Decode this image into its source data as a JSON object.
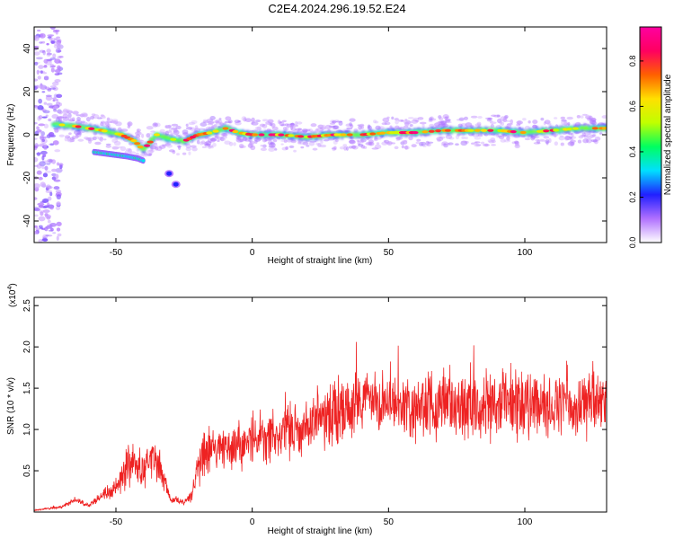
{
  "title": "C2E4.2024.296.19.52.E24",
  "chart_data": [
    {
      "type": "heatmap",
      "xlabel": "Height of straight line (km)",
      "ylabel": "Frequency (Hz)",
      "xlim": [
        -80,
        130
      ],
      "ylim": [
        -50,
        50
      ],
      "xticks": [
        -50,
        0,
        50,
        100
      ],
      "yticks": [
        40,
        20,
        0,
        -20,
        -40
      ],
      "grid": false,
      "colorbar": {
        "label": "Normalized spectral amplitude",
        "range": [
          0,
          0.95
        ],
        "ticks": [
          "0.0",
          "0.2",
          "0.4",
          "0.6",
          "0.8"
        ],
        "tick_values": [
          0.0,
          0.2,
          0.4,
          0.6,
          0.8
        ],
        "colors": [
          "#ffffff",
          "#b070ff",
          "#2020ff",
          "#00e0ff",
          "#00ff60",
          "#c0ff00",
          "#ffe000",
          "#ff6000",
          "#ff0060",
          "#ff00a0"
        ]
      },
      "ridge": {
        "x": [
          -73,
          -65,
          -55,
          -48,
          -43,
          -40,
          -35,
          -30,
          -25,
          -20,
          -15,
          -10,
          -5,
          0,
          10,
          20,
          30,
          40,
          50,
          60,
          70,
          80,
          90,
          100,
          110,
          120,
          130
        ],
        "y": [
          5,
          4,
          2,
          0,
          -3,
          -7,
          0,
          -2,
          -3,
          0,
          1,
          3,
          1,
          0,
          0,
          -1,
          0,
          0,
          1,
          1,
          2,
          2,
          2,
          1,
          2,
          3,
          3
        ]
      },
      "secondary_branch": {
        "x": [
          -58,
          -52,
          -46,
          -42,
          -40
        ],
        "y": [
          -8,
          -9,
          -10,
          -11,
          -12
        ]
      },
      "isolated_blobs": [
        {
          "x": -30.5,
          "y": -18
        },
        {
          "x": -28,
          "y": -23
        }
      ]
    },
    {
      "type": "line",
      "xlabel": "Height of straight line (km)",
      "ylabel": "SNR (10 * v/v)",
      "y_multiplier": "(x10",
      "y_multiplier_exp": "4",
      "y_multiplier_close": ")",
      "xlim": [
        -80,
        130
      ],
      "ylim": [
        0,
        2.6
      ],
      "xticks": [
        -50,
        0,
        50,
        100
      ],
      "yticks": [
        "0.5",
        "1.0",
        "1.5",
        "2.0",
        "2.5"
      ],
      "ytick_values": [
        0.5,
        1.0,
        1.5,
        2.0,
        2.5
      ],
      "line_color": "#ee2222",
      "grid": false,
      "series": [
        {
          "x": [
            -80,
            -70,
            -65,
            -60,
            -55,
            -50,
            -46,
            -43,
            -40,
            -37,
            -34,
            -30,
            -28,
            -25,
            -22,
            -20,
            -18,
            -15,
            -10,
            -5,
            0,
            5,
            10,
            15,
            20,
            25,
            30,
            35,
            40,
            45,
            50,
            55,
            60,
            65,
            70,
            75,
            80,
            85,
            90,
            95,
            100,
            105,
            110,
            115,
            120,
            125,
            130
          ],
          "y": [
            0.02,
            0.06,
            0.15,
            0.08,
            0.2,
            0.3,
            0.55,
            0.6,
            0.5,
            0.65,
            0.55,
            0.15,
            0.15,
            0.12,
            0.2,
            0.55,
            0.7,
            0.75,
            0.75,
            0.8,
            0.85,
            0.9,
            0.95,
            1.0,
            1.05,
            1.1,
            1.2,
            1.25,
            1.3,
            1.3,
            1.3,
            1.28,
            1.3,
            1.32,
            1.35,
            1.3,
            1.3,
            1.28,
            1.3,
            1.32,
            1.3,
            1.25,
            1.28,
            1.3,
            1.25,
            1.3,
            1.28
          ],
          "amplitude": [
            0.01,
            0.02,
            0.05,
            0.03,
            0.08,
            0.15,
            0.3,
            0.3,
            0.25,
            0.3,
            0.25,
            0.05,
            0.06,
            0.05,
            0.1,
            0.3,
            0.4,
            0.35,
            0.3,
            0.35,
            0.35,
            0.4,
            0.4,
            0.4,
            0.4,
            0.4,
            0.45,
            0.5,
            0.45,
            0.45,
            0.45,
            0.45,
            0.5,
            0.5,
            0.55,
            0.5,
            0.5,
            0.5,
            0.5,
            0.5,
            0.5,
            0.45,
            0.45,
            0.45,
            0.45,
            0.45,
            0.45
          ]
        }
      ]
    }
  ]
}
